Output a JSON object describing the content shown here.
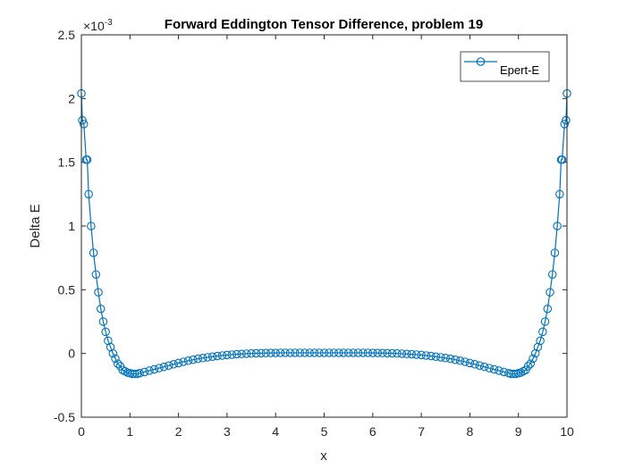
{
  "chart_data": {
    "type": "line",
    "title": "Forward Eddington Tensor Difference, problem 19",
    "xlabel": "x",
    "ylabel": "Delta E",
    "exponent_label": "×10",
    "exponent_power": "-3",
    "xlim": [
      0,
      10
    ],
    "ylim": [
      -0.5,
      2.5
    ],
    "y_scale_factor": 0.001,
    "xticks": [
      0,
      1,
      2,
      3,
      4,
      5,
      6,
      7,
      8,
      9,
      10
    ],
    "xtick_labels": [
      "0",
      "1",
      "2",
      "3",
      "4",
      "5",
      "6",
      "7",
      "8",
      "9",
      "10"
    ],
    "yticks": [
      -0.5,
      0,
      0.5,
      1,
      1.5,
      2,
      2.5
    ],
    "ytick_labels": [
      "-0.5",
      "0",
      "0.5",
      "1",
      "1.5",
      "2",
      "2.5"
    ],
    "grid": false,
    "legend_position": "top-right",
    "marker": "circle",
    "colors": {
      "series": "#0072BD",
      "axes": "#262626"
    },
    "series": [
      {
        "name": "Epert-E",
        "x": [
          0,
          0.02,
          0.05,
          0.1,
          0.12,
          0.15,
          0.2,
          0.25,
          0.3,
          0.35,
          0.4,
          0.45,
          0.5,
          0.55,
          0.6,
          0.65,
          0.7,
          0.75,
          0.8,
          0.85,
          0.9,
          0.95,
          1.0,
          1.05,
          1.1,
          1.15,
          1.2,
          1.3,
          1.4,
          1.5,
          1.6,
          1.7,
          1.8,
          1.9,
          2.0,
          2.1,
          2.2,
          2.3,
          2.4,
          2.5,
          2.6,
          2.7,
          2.8,
          2.9,
          3.0,
          3.1,
          3.2,
          3.3,
          3.4,
          3.5,
          3.6,
          3.7,
          3.8,
          3.9,
          4.0,
          4.1,
          4.2,
          4.3,
          4.4,
          4.5,
          4.6,
          4.7,
          4.8,
          4.9,
          5.0,
          5.1,
          5.2,
          5.3,
          5.4,
          5.5,
          5.6,
          5.7,
          5.8,
          5.9,
          6.0,
          6.1,
          6.2,
          6.3,
          6.4,
          6.5,
          6.6,
          6.7,
          6.8,
          6.9,
          7.0,
          7.1,
          7.2,
          7.3,
          7.4,
          7.5,
          7.6,
          7.7,
          7.8,
          7.9,
          8.0,
          8.1,
          8.2,
          8.3,
          8.4,
          8.5,
          8.6,
          8.7,
          8.8,
          8.85,
          8.9,
          8.95,
          9.0,
          9.05,
          9.1,
          9.15,
          9.2,
          9.25,
          9.3,
          9.35,
          9.4,
          9.45,
          9.5,
          9.55,
          9.6,
          9.65,
          9.7,
          9.75,
          9.8,
          9.85,
          9.88,
          9.9,
          9.95,
          9.98,
          10.0
        ],
        "y": [
          2.04,
          1.83,
          1.8,
          1.52,
          1.52,
          1.25,
          1.0,
          0.79,
          0.62,
          0.48,
          0.35,
          0.25,
          0.17,
          0.1,
          0.05,
          0.0,
          -0.04,
          -0.08,
          -0.1,
          -0.13,
          -0.14,
          -0.15,
          -0.155,
          -0.16,
          -0.16,
          -0.16,
          -0.155,
          -0.145,
          -0.135,
          -0.125,
          -0.115,
          -0.105,
          -0.095,
          -0.085,
          -0.075,
          -0.065,
          -0.057,
          -0.049,
          -0.042,
          -0.036,
          -0.03,
          -0.025,
          -0.02,
          -0.016,
          -0.012,
          -0.009,
          -0.006,
          -0.004,
          -0.002,
          0.0,
          0.001,
          0.002,
          0.003,
          0.004,
          0.004,
          0.005,
          0.005,
          0.005,
          0.005,
          0.005,
          0.005,
          0.005,
          0.005,
          0.005,
          0.005,
          0.005,
          0.005,
          0.005,
          0.005,
          0.005,
          0.005,
          0.005,
          0.005,
          0.005,
          0.004,
          0.004,
          0.003,
          0.002,
          0.001,
          0.0,
          -0.002,
          -0.004,
          -0.006,
          -0.009,
          -0.012,
          -0.016,
          -0.02,
          -0.025,
          -0.03,
          -0.036,
          -0.042,
          -0.049,
          -0.057,
          -0.065,
          -0.075,
          -0.085,
          -0.095,
          -0.105,
          -0.115,
          -0.125,
          -0.135,
          -0.145,
          -0.155,
          -0.16,
          -0.16,
          -0.16,
          -0.155,
          -0.15,
          -0.14,
          -0.13,
          -0.1,
          -0.08,
          -0.04,
          0.0,
          0.05,
          0.1,
          0.17,
          0.25,
          0.35,
          0.48,
          0.62,
          0.79,
          1.0,
          1.25,
          1.52,
          1.52,
          1.8,
          1.83,
          2.04
        ]
      }
    ]
  }
}
